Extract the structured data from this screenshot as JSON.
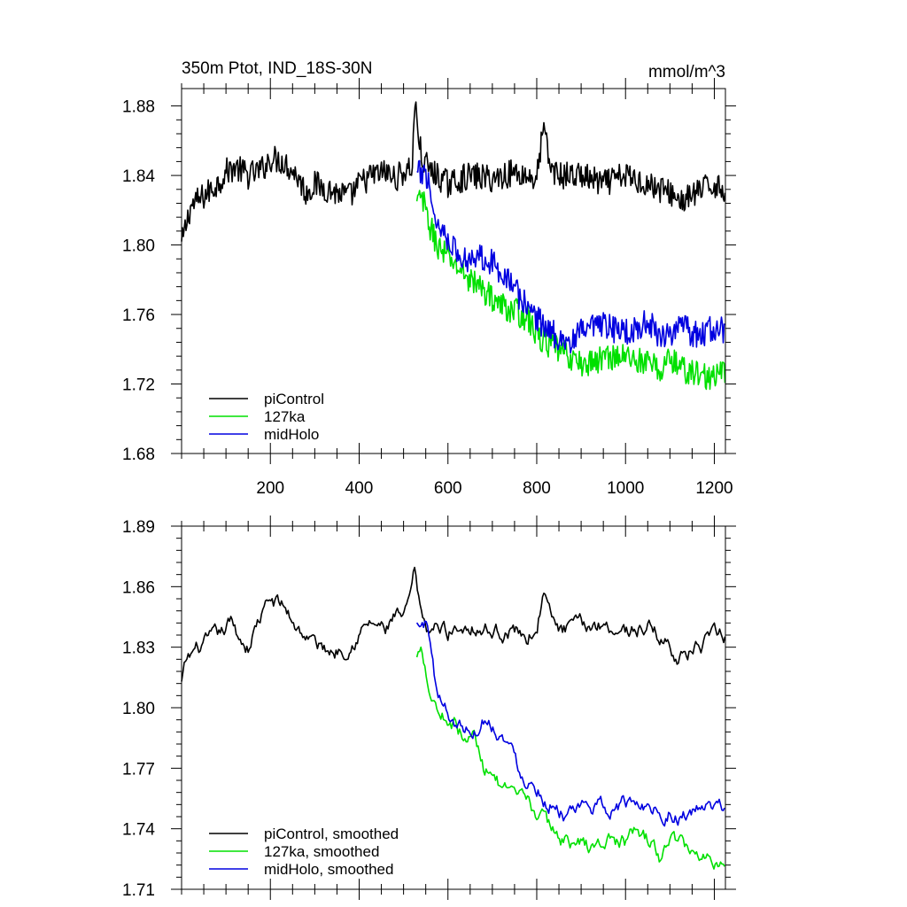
{
  "chart_data": [
    {
      "type": "line",
      "title": "350m Ptot, IND_18S-30N",
      "units": "mmol/m^3",
      "xlim": [
        0,
        1225
      ],
      "ylim": [
        1.68,
        1.89
      ],
      "xticks": [
        200,
        400,
        600,
        800,
        1000,
        1200
      ],
      "xtick_labels": [
        "200",
        "400",
        "600",
        "800",
        "1000",
        "1200"
      ],
      "yticks": [
        1.68,
        1.72,
        1.76,
        1.8,
        1.84,
        1.88
      ],
      "ytick_labels": [
        "1.68",
        "1.72",
        "1.76",
        "1.80",
        "1.84",
        "1.88"
      ],
      "legend_position": "bottom-left",
      "series": [
        {
          "name": "piControl",
          "color": "#000000",
          "x": [
            0,
            20,
            50,
            80,
            100,
            120,
            150,
            180,
            200,
            230,
            260,
            280,
            300,
            330,
            350,
            380,
            400,
            430,
            460,
            480,
            500,
            520,
            525,
            540,
            560,
            600,
            650,
            700,
            750,
            800,
            815,
            830,
            850,
            900,
            950,
            1000,
            1050,
            1100,
            1130,
            1160,
            1200,
            1225
          ],
          "y": [
            1.8,
            1.822,
            1.828,
            1.835,
            1.842,
            1.845,
            1.84,
            1.843,
            1.85,
            1.848,
            1.84,
            1.83,
            1.835,
            1.832,
            1.83,
            1.828,
            1.835,
            1.84,
            1.842,
            1.838,
            1.842,
            1.845,
            1.883,
            1.85,
            1.843,
            1.835,
            1.84,
            1.838,
            1.842,
            1.838,
            1.868,
            1.845,
            1.84,
            1.84,
            1.835,
            1.84,
            1.835,
            1.83,
            1.825,
            1.83,
            1.835,
            1.832
          ],
          "noise": 0.008
        },
        {
          "name": "127ka",
          "color": "#00e000",
          "x": [
            530,
            540,
            560,
            580,
            600,
            630,
            660,
            690,
            720,
            750,
            780,
            800,
            830,
            860,
            900,
            930,
            960,
            1000,
            1050,
            1080,
            1100,
            1130,
            1160,
            1200,
            1225
          ],
          "y": [
            1.823,
            1.828,
            1.81,
            1.798,
            1.793,
            1.785,
            1.778,
            1.772,
            1.765,
            1.762,
            1.758,
            1.748,
            1.742,
            1.738,
            1.731,
            1.733,
            1.736,
            1.736,
            1.732,
            1.728,
            1.735,
            1.728,
            1.726,
            1.723,
            1.728
          ],
          "noise": 0.008
        },
        {
          "name": "midHolo",
          "color": "#0000e0",
          "x": [
            530,
            545,
            555,
            565,
            580,
            600,
            630,
            660,
            690,
            720,
            740,
            760,
            780,
            800,
            830,
            860,
            880,
            900,
            950,
            1000,
            1050,
            1080,
            1100,
            1130,
            1160,
            1200,
            1225
          ],
          "y": [
            1.84,
            1.842,
            1.84,
            1.822,
            1.81,
            1.805,
            1.79,
            1.795,
            1.792,
            1.785,
            1.78,
            1.77,
            1.765,
            1.758,
            1.75,
            1.746,
            1.743,
            1.75,
            1.753,
            1.75,
            1.755,
            1.748,
            1.75,
            1.752,
            1.748,
            1.752,
            1.75
          ],
          "noise": 0.008
        }
      ]
    },
    {
      "type": "line",
      "xlim": [
        0,
        1225
      ],
      "ylim": [
        1.71,
        1.89
      ],
      "xticks": [
        200,
        400,
        600,
        800,
        1000,
        1200
      ],
      "yticks": [
        1.71,
        1.74,
        1.77,
        1.8,
        1.83,
        1.86,
        1.89
      ],
      "ytick_labels": [
        "1.71",
        "1.74",
        "1.77",
        "1.80",
        "1.83",
        "1.86",
        "1.89"
      ],
      "legend_position": "bottom-left",
      "series": [
        {
          "name": "piControl, smoothed",
          "color": "#000000",
          "x": [
            0,
            10,
            30,
            60,
            90,
            110,
            130,
            150,
            170,
            200,
            230,
            260,
            290,
            310,
            340,
            360,
            380,
            400,
            430,
            460,
            480,
            500,
            510,
            525,
            540,
            560,
            580,
            600,
            650,
            700,
            750,
            780,
            800,
            815,
            830,
            850,
            900,
            950,
            1000,
            1050,
            1080,
            1110,
            1130,
            1160,
            1190,
            1210,
            1225
          ],
          "y": [
            1.812,
            1.822,
            1.828,
            1.832,
            1.836,
            1.842,
            1.835,
            1.83,
            1.842,
            1.853,
            1.85,
            1.84,
            1.834,
            1.83,
            1.828,
            1.83,
            1.832,
            1.838,
            1.842,
            1.838,
            1.845,
            1.843,
            1.848,
            1.866,
            1.843,
            1.838,
            1.84,
            1.838,
            1.842,
            1.838,
            1.838,
            1.835,
            1.84,
            1.858,
            1.845,
            1.838,
            1.84,
            1.842,
            1.838,
            1.84,
            1.835,
            1.828,
            1.825,
            1.83,
            1.832,
            1.836,
            1.836
          ],
          "noise": 0.003
        },
        {
          "name": "127ka, smoothed",
          "color": "#00e000",
          "x": [
            530,
            540,
            550,
            560,
            570,
            580,
            600,
            620,
            640,
            660,
            680,
            700,
            720,
            740,
            760,
            780,
            800,
            830,
            860,
            900,
            930,
            960,
            1000,
            1030,
            1060,
            1080,
            1100,
            1130,
            1160,
            1200,
            1225
          ],
          "y": [
            1.824,
            1.832,
            1.822,
            1.808,
            1.805,
            1.798,
            1.795,
            1.792,
            1.783,
            1.786,
            1.77,
            1.772,
            1.76,
            1.755,
            1.753,
            1.752,
            1.748,
            1.74,
            1.735,
            1.732,
            1.73,
            1.735,
            1.733,
            1.738,
            1.732,
            1.724,
            1.736,
            1.732,
            1.728,
            1.725,
            1.727
          ],
          "noise": 0.003
        },
        {
          "name": "midHolo, smoothed",
          "color": "#0000e0",
          "x": [
            530,
            545,
            555,
            565,
            575,
            585,
            600,
            620,
            640,
            660,
            680,
            700,
            720,
            740,
            760,
            780,
            800,
            820,
            840,
            860,
            880,
            900,
            920,
            950,
            1000,
            1050,
            1080,
            1100,
            1120,
            1150,
            1180,
            1200,
            1225
          ],
          "y": [
            1.841,
            1.84,
            1.842,
            1.825,
            1.808,
            1.802,
            1.798,
            1.792,
            1.79,
            1.79,
            1.795,
            1.792,
            1.788,
            1.78,
            1.77,
            1.765,
            1.762,
            1.755,
            1.752,
            1.748,
            1.745,
            1.748,
            1.752,
            1.75,
            1.752,
            1.753,
            1.748,
            1.75,
            1.745,
            1.748,
            1.75,
            1.748,
            1.75
          ],
          "noise": 0.003
        }
      ]
    }
  ]
}
